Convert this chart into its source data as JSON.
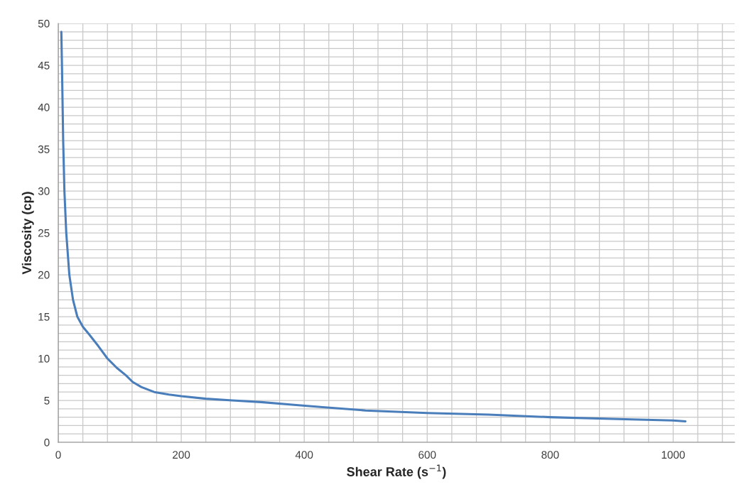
{
  "chart_data": {
    "type": "line",
    "xlabel": "Shear Rate (s$^{−1}$)",
    "ylabel": "Viscosity (cp)",
    "xlim": [
      0,
      1100
    ],
    "xticks": [
      0,
      200,
      400,
      600,
      800,
      1000
    ],
    "ylim": [
      0,
      50
    ],
    "yticks": [
      0,
      5,
      10,
      15,
      20,
      25,
      30,
      35,
      40,
      45,
      50
    ],
    "grid": true,
    "marker": "none",
    "line_style": "solid",
    "series": [
      {
        "color": "#4a7ebb",
        "x": [
          5,
          6,
          8,
          10,
          13,
          18,
          24,
          31,
          40,
          50,
          65,
          80,
          95,
          110,
          121,
          135,
          156,
          180,
          200,
          240,
          283,
          330,
          380,
          430,
          500,
          600,
          700,
          800,
          900,
          1000,
          1020
        ],
        "values": [
          49,
          45,
          36,
          30,
          25,
          20,
          17,
          15,
          13.8,
          12.9,
          11.5,
          10,
          8.9,
          8,
          7.2,
          6.6,
          6.0,
          5.7,
          5.5,
          5.2,
          5.0,
          4.8,
          4.5,
          4.2,
          3.8,
          3.5,
          3.3,
          3.0,
          2.8,
          2.6,
          2.5
        ]
      }
    ]
  }
}
